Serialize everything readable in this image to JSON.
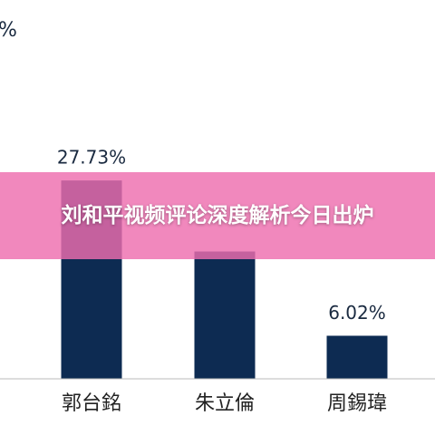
{
  "cropped_label": "%",
  "banner": {
    "title": "刘和平视频评论深度解析今日出炉"
  },
  "chart_data": {
    "type": "bar",
    "categories": [
      "郭台銘",
      "朱立倫",
      "周錫瑋"
    ],
    "values": [
      27.73,
      17.8,
      6.02
    ],
    "value_labels": [
      "27.73%",
      null,
      "6.02%"
    ],
    "color": "#0d2b52",
    "ylim": [
      0,
      28
    ]
  }
}
